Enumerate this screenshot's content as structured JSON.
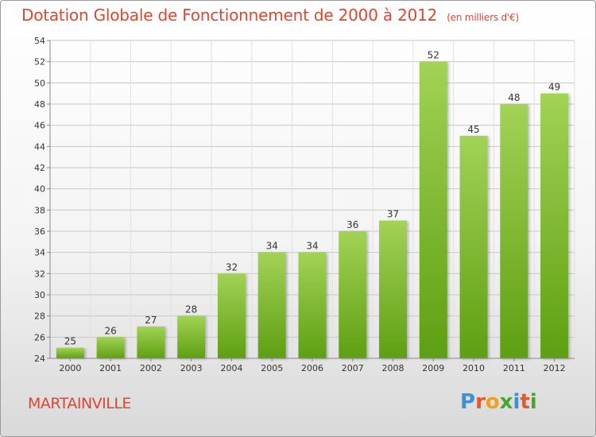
{
  "header": {
    "title": "Dotation Globale de Fonctionnement de 2000 à 2012",
    "unit": "(en milliers d'€)"
  },
  "footer": {
    "commune": "MARTAINVILLE",
    "logo_text": "Proxiti"
  },
  "colors": {
    "bar_top": "#a2d256",
    "bar_bottom": "#5e9f12",
    "title": "#e0462e",
    "grid": "#c8c8c8"
  },
  "chart_data": {
    "type": "bar",
    "categories": [
      "2000",
      "2001",
      "2002",
      "2003",
      "2004",
      "2005",
      "2006",
      "2007",
      "2008",
      "2009",
      "2010",
      "2011",
      "2012"
    ],
    "values": [
      25,
      26,
      27,
      28,
      32,
      34,
      34,
      36,
      37,
      52,
      45,
      48,
      49
    ],
    "title": "Dotation Globale de Fonctionnement de 2000 à 2012",
    "ylabel": "",
    "xlabel": "",
    "ylim": [
      24,
      54
    ],
    "yticks": [
      24,
      26,
      28,
      30,
      32,
      34,
      36,
      38,
      40,
      42,
      44,
      46,
      48,
      50,
      52,
      54
    ],
    "grid": true
  }
}
